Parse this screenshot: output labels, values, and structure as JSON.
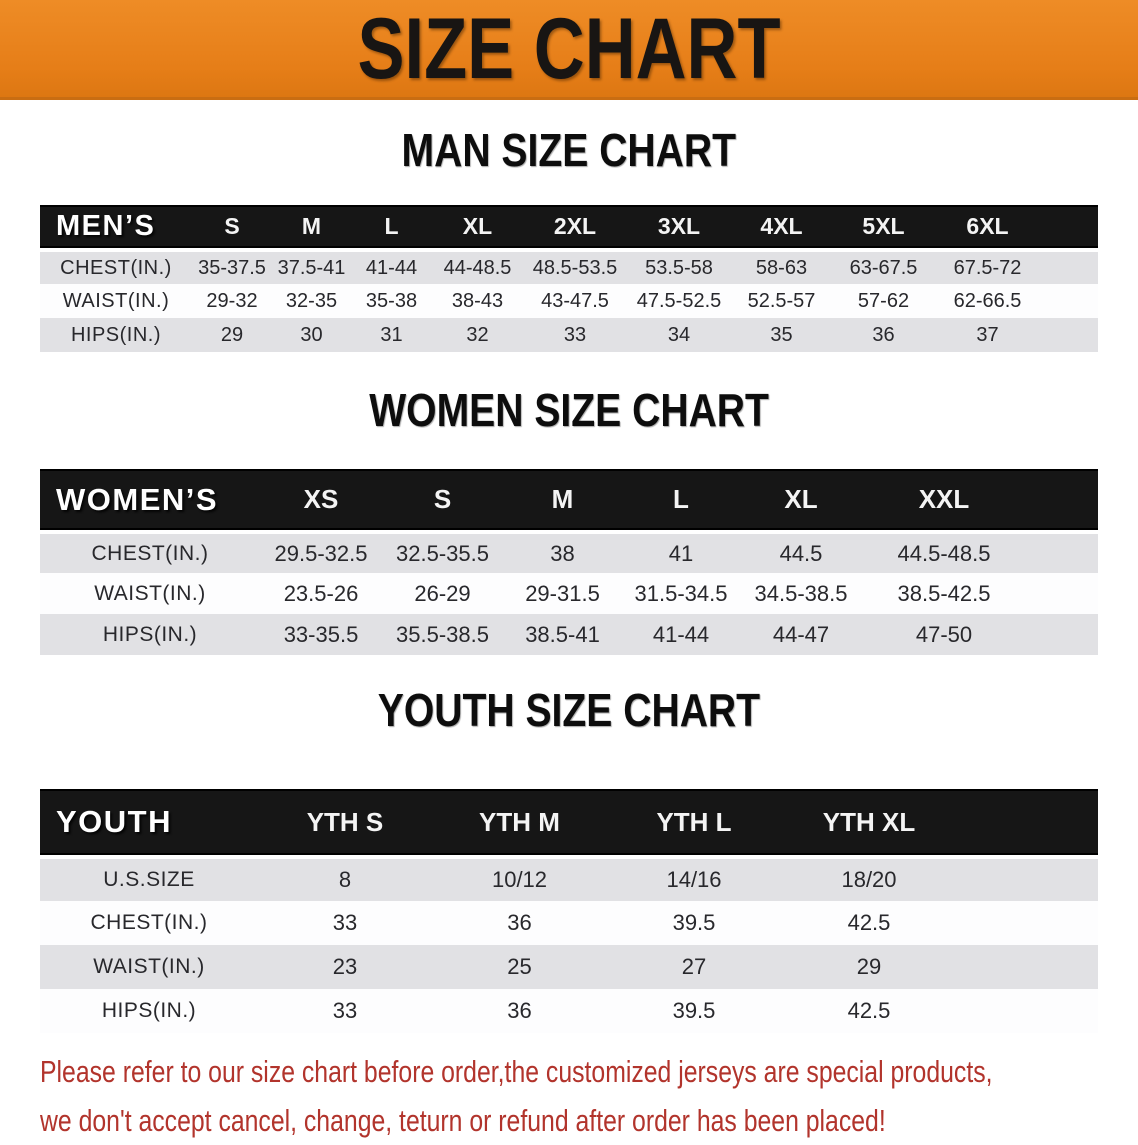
{
  "banner": {
    "title": "SIZE CHART"
  },
  "sections": [
    {
      "title": "MAN SIZE CHART",
      "group_label": "MEN’S",
      "sizes": [
        "S",
        "M",
        "L",
        "XL",
        "2XL",
        "3XL",
        "4XL",
        "5XL",
        "6XL"
      ],
      "rows": [
        {
          "label": "CHEST(IN.)",
          "values": [
            "35-37.5",
            "37.5-41",
            "41-44",
            "44-48.5",
            "48.5-53.5",
            "53.5-58",
            "58-63",
            "63-67.5",
            "67.5-72"
          ]
        },
        {
          "label": "WAIST(IN.)",
          "values": [
            "29-32",
            "32-35",
            "35-38",
            "38-43",
            "43-47.5",
            "47.5-52.5",
            "52.5-57",
            "57-62",
            "62-66.5"
          ]
        },
        {
          "label": "HIPS(IN.)",
          "values": [
            "29",
            "30",
            "31",
            "32",
            "33",
            "34",
            "35",
            "36",
            "37"
          ]
        }
      ]
    },
    {
      "title": "WOMEN SIZE CHART",
      "group_label": "WOMEN’S",
      "sizes": [
        "XS",
        "S",
        "M",
        "L",
        "XL",
        "XXL"
      ],
      "rows": [
        {
          "label": "CHEST(IN.)",
          "values": [
            "29.5-32.5",
            "32.5-35.5",
            "38",
            "41",
            "44.5",
            "44.5-48.5"
          ]
        },
        {
          "label": "WAIST(IN.)",
          "values": [
            "23.5-26",
            "26-29",
            "29-31.5",
            "31.5-34.5",
            "34.5-38.5",
            "38.5-42.5"
          ]
        },
        {
          "label": "HIPS(IN.)",
          "values": [
            "33-35.5",
            "35.5-38.5",
            "38.5-41",
            "41-44",
            "44-47",
            "47-50"
          ]
        }
      ]
    },
    {
      "title": "YOUTH SIZE CHART",
      "group_label": "YOUTH",
      "sizes": [
        "YTH S",
        "YTH M",
        "YTH L",
        "YTH XL"
      ],
      "rows": [
        {
          "label": "U.S.SIZE",
          "values": [
            "8",
            "10/12",
            "14/16",
            "18/20"
          ]
        },
        {
          "label": "CHEST(IN.)",
          "values": [
            "33",
            "36",
            "39.5",
            "42.5"
          ]
        },
        {
          "label": "WAIST(IN.)",
          "values": [
            "23",
            "25",
            "27",
            "29"
          ]
        },
        {
          "label": "HIPS(IN.)",
          "values": [
            "33",
            "36",
            "39.5",
            "42.5"
          ]
        }
      ]
    }
  ],
  "disclaimer": {
    "line1": "Please refer to our size chart before order,the customized jerseys are special products,",
    "line2": "we don't accept cancel, change, teturn or refund after order has been placed!"
  },
  "colors": {
    "banner_bg": "#E8821E",
    "header_bg": "#161616",
    "stripe_gray": "#E1E1E4",
    "disclaimer_red": "#B2342C"
  }
}
